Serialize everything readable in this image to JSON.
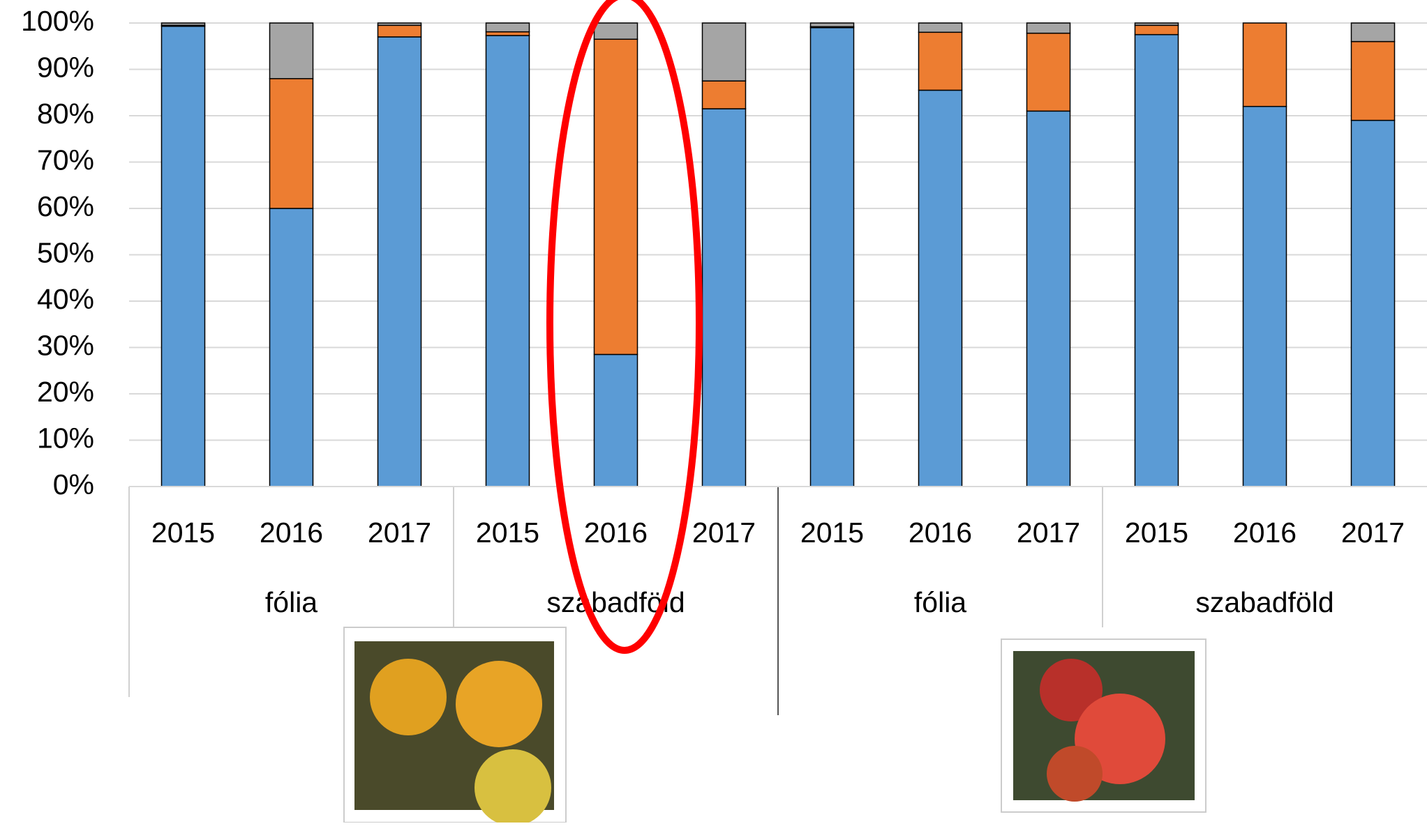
{
  "chart_data": {
    "type": "stacked_bar",
    "categories": [
      "2015",
      "2016",
      "2017",
      "2015",
      "2016",
      "2017",
      "2015",
      "2016",
      "2017",
      "2015",
      "2016",
      "2017"
    ],
    "group_labels": [
      "fólia",
      "szabadföld",
      "fólia",
      "szabadföld"
    ],
    "series": [
      {
        "color": "#5b9bd5",
        "values": [
          99.3,
          60,
          97,
          97.3,
          28.5,
          81.5,
          99,
          85.5,
          81,
          97.5,
          82,
          79
        ]
      },
      {
        "color": "#ed7d31",
        "values": [
          0.2,
          28,
          2.5,
          0.8,
          68,
          6,
          0.2,
          12.5,
          16.8,
          2,
          18,
          17
        ]
      },
      {
        "color": "#a5a5a5",
        "values": [
          0.5,
          12,
          0.5,
          1.9,
          3.5,
          12.5,
          0.8,
          2,
          2.2,
          0.5,
          0,
          4
        ]
      }
    ],
    "ylim": [
      0,
      100
    ],
    "yticks": [
      {
        "value": 0,
        "label": "0%"
      },
      {
        "value": 10,
        "label": "10%"
      },
      {
        "value": 20,
        "label": "20%"
      },
      {
        "value": 30,
        "label": "30%"
      },
      {
        "value": 40,
        "label": "40%"
      },
      {
        "value": 50,
        "label": "50%"
      },
      {
        "value": 60,
        "label": "60%"
      },
      {
        "value": 70,
        "label": "70%"
      },
      {
        "value": 80,
        "label": "80%"
      },
      {
        "value": 90,
        "label": "90%"
      },
      {
        "value": 100,
        "label": "100%"
      }
    ],
    "grid": true
  }
}
